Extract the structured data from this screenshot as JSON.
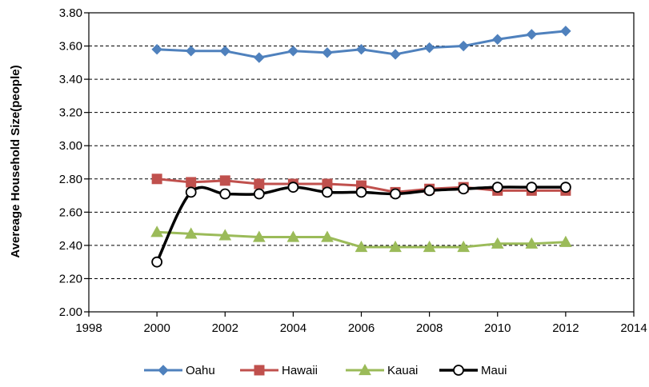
{
  "chart_data": {
    "type": "line",
    "title": "",
    "xlabel": "",
    "ylabel": "Avereage Household Size(people)",
    "xlim": [
      1998,
      2014
    ],
    "ylim": [
      2.0,
      3.8
    ],
    "x_ticks": [
      1998,
      2000,
      2002,
      2004,
      2006,
      2008,
      2010,
      2012,
      2014
    ],
    "x_tick_labels": [
      "1998",
      "2000",
      "2002",
      "2004",
      "2006",
      "2008",
      "2010",
      "2012",
      "2014"
    ],
    "y_ticks": [
      2.0,
      2.2,
      2.4,
      2.6,
      2.8,
      3.0,
      3.2,
      3.4,
      3.6,
      3.8
    ],
    "y_tick_labels": [
      "2.00",
      "2.20",
      "2.40",
      "2.60",
      "2.80",
      "3.00",
      "3.20",
      "3.40",
      "3.60",
      "3.80"
    ],
    "grid": "horizontal dashed",
    "legend": "bottom",
    "x": [
      2000,
      2001,
      2002,
      2003,
      2004,
      2005,
      2006,
      2007,
      2008,
      2009,
      2010,
      2011,
      2012
    ],
    "series": [
      {
        "name": "Oahu",
        "color": "#4F81BD",
        "marker": "diamond",
        "values": [
          3.58,
          3.57,
          3.57,
          3.53,
          3.57,
          3.56,
          3.58,
          3.55,
          3.59,
          3.6,
          3.64,
          3.67,
          3.69
        ]
      },
      {
        "name": "Hawaii",
        "color": "#C0504D",
        "marker": "square",
        "values": [
          2.8,
          2.78,
          2.79,
          2.77,
          2.77,
          2.77,
          2.76,
          2.72,
          2.74,
          2.75,
          2.73,
          2.73,
          2.73
        ]
      },
      {
        "name": "Kauai",
        "color": "#9BBB59",
        "marker": "triangle",
        "values": [
          2.48,
          2.47,
          2.46,
          2.45,
          2.45,
          2.45,
          2.39,
          2.39,
          2.39,
          2.39,
          2.41,
          2.41,
          2.42
        ]
      },
      {
        "name": "Maui",
        "color": "#000000",
        "marker": "open-circle",
        "smooth": true,
        "values": [
          2.3,
          2.72,
          2.71,
          2.71,
          2.75,
          2.72,
          2.72,
          2.71,
          2.73,
          2.74,
          2.75,
          2.75,
          2.75
        ]
      }
    ]
  }
}
